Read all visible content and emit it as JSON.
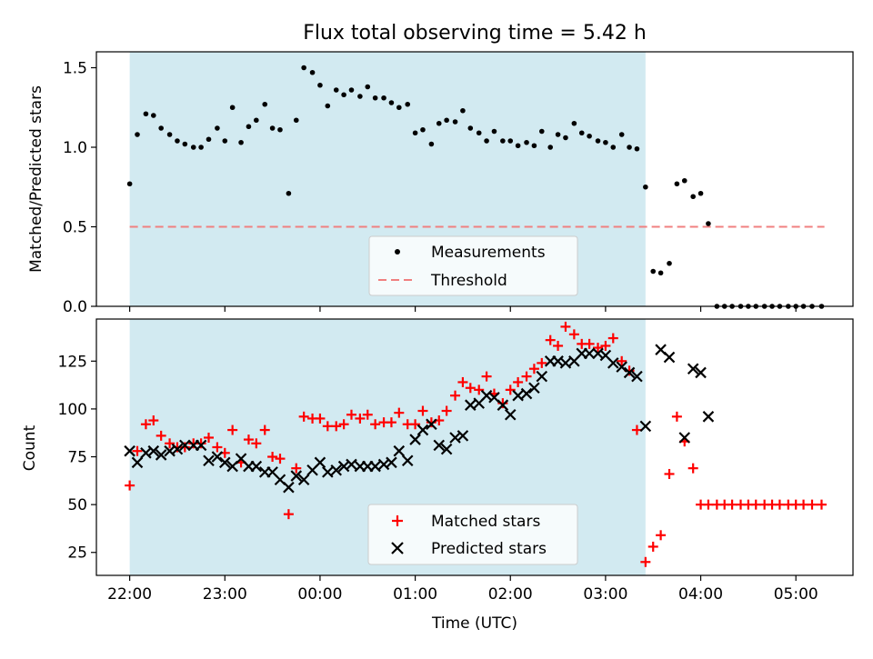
{
  "figure": {
    "title": "Flux total observing time = 5.42 h",
    "xlabel": "Time (UTC)",
    "x_ticks": [
      "22:00",
      "23:00",
      "00:00",
      "01:00",
      "02:00",
      "03:00",
      "04:00",
      "05:00"
    ]
  },
  "chart_data": [
    {
      "type": "scatter",
      "xlabel": "",
      "ylabel": "Matched/Predicted stars",
      "x_unit": "hours since 22:00 UTC",
      "xlim": [
        -0.35,
        7.6
      ],
      "ylim": [
        0,
        1.6
      ],
      "y_ticks": [
        "0.0",
        "0.5",
        "1.0",
        "1.5"
      ],
      "grid": false,
      "legend_position": "lower center",
      "shaded_interval": [
        0.0,
        5.42
      ],
      "shade_color": "#add8e6",
      "threshold": {
        "name": "Threshold",
        "value": 0.5,
        "x_range": [
          0.0,
          7.3
        ],
        "color": "#f08080"
      },
      "series": [
        {
          "name": "Measurements",
          "color": "#000000",
          "marker": "dot",
          "x": [
            0.0,
            0.08,
            0.17,
            0.25,
            0.33,
            0.42,
            0.5,
            0.58,
            0.67,
            0.75,
            0.83,
            0.92,
            1.0,
            1.08,
            1.17,
            1.25,
            1.33,
            1.42,
            1.5,
            1.58,
            1.67,
            1.75,
            1.83,
            1.92,
            2.0,
            2.08,
            2.17,
            2.25,
            2.33,
            2.42,
            2.5,
            2.58,
            2.67,
            2.75,
            2.83,
            2.92,
            3.0,
            3.08,
            3.17,
            3.25,
            3.33,
            3.42,
            3.5,
            3.58,
            3.67,
            3.75,
            3.83,
            3.92,
            4.0,
            4.08,
            4.17,
            4.25,
            4.33,
            4.42,
            4.5,
            4.58,
            4.67,
            4.75,
            4.83,
            4.92,
            5.0,
            5.08,
            5.17,
            5.25,
            5.33,
            5.42,
            5.5,
            5.58,
            5.67,
            5.75,
            5.83,
            5.92,
            6.0,
            6.08,
            6.17,
            6.25,
            6.33,
            6.42,
            6.5,
            6.58,
            6.67,
            6.75,
            6.83,
            6.92,
            7.0,
            7.08,
            7.17,
            7.27
          ],
          "y": [
            0.77,
            1.08,
            1.21,
            1.2,
            1.12,
            1.08,
            1.04,
            1.02,
            1.0,
            1.0,
            1.05,
            1.12,
            1.04,
            1.25,
            1.03,
            1.13,
            1.17,
            1.27,
            1.12,
            1.11,
            0.71,
            1.17,
            1.5,
            1.47,
            1.39,
            1.26,
            1.36,
            1.33,
            1.36,
            1.32,
            1.38,
            1.31,
            1.31,
            1.28,
            1.25,
            1.27,
            1.09,
            1.11,
            1.02,
            1.15,
            1.17,
            1.16,
            1.23,
            1.12,
            1.09,
            1.04,
            1.1,
            1.04,
            1.04,
            1.01,
            1.03,
            1.01,
            1.1,
            1.0,
            1.08,
            1.06,
            1.15,
            1.09,
            1.07,
            1.04,
            1.03,
            1.0,
            1.08,
            1.0,
            0.99,
            0.75,
            0.22,
            0.21,
            0.27,
            0.77,
            0.79,
            0.69,
            0.71,
            0.52,
            0.0,
            0.0,
            0.0,
            0.0,
            0.0,
            0.0,
            0.0,
            0.0,
            0.0,
            0.0,
            0.0,
            0.0,
            0.0,
            0.0
          ]
        }
      ]
    },
    {
      "type": "scatter",
      "xlabel": "Time (UTC)",
      "ylabel": "Count",
      "x_unit": "hours since 22:00 UTC",
      "xlim": [
        -0.35,
        7.6
      ],
      "ylim": [
        13,
        147
      ],
      "y_ticks": [
        "25",
        "50",
        "75",
        "100",
        "125"
      ],
      "grid": false,
      "legend_position": "lower center",
      "shaded_interval": [
        0.0,
        5.42
      ],
      "shade_color": "#add8e6",
      "series": [
        {
          "name": "Matched stars",
          "color": "#ff0000",
          "marker": "plus",
          "x": [
            0.0,
            0.08,
            0.17,
            0.25,
            0.33,
            0.42,
            0.5,
            0.58,
            0.67,
            0.75,
            0.83,
            0.92,
            1.0,
            1.08,
            1.17,
            1.25,
            1.33,
            1.42,
            1.5,
            1.58,
            1.67,
            1.75,
            1.83,
            1.92,
            2.0,
            2.08,
            2.17,
            2.25,
            2.33,
            2.42,
            2.5,
            2.58,
            2.67,
            2.75,
            2.83,
            2.92,
            3.0,
            3.08,
            3.17,
            3.25,
            3.33,
            3.42,
            3.5,
            3.58,
            3.67,
            3.75,
            3.83,
            3.92,
            4.0,
            4.08,
            4.17,
            4.25,
            4.33,
            4.42,
            4.5,
            4.58,
            4.67,
            4.75,
            4.83,
            4.92,
            5.0,
            5.08,
            5.17,
            5.25,
            5.33,
            5.42,
            5.5,
            5.58,
            5.67,
            5.75,
            5.83,
            5.92,
            6.0,
            6.08,
            6.17,
            6.25,
            6.33,
            6.42,
            6.5,
            6.58,
            6.67,
            6.75,
            6.83,
            6.92,
            7.0,
            7.08,
            7.17,
            7.27
          ],
          "y": [
            60,
            78,
            92,
            94,
            86,
            82,
            80,
            80,
            82,
            82,
            85,
            80,
            77,
            89,
            72,
            84,
            82,
            89,
            75,
            74,
            45,
            69,
            96,
            95,
            95,
            91,
            91,
            92,
            97,
            95,
            97,
            92,
            93,
            93,
            98,
            92,
            92,
            99,
            93,
            94,
            99,
            107,
            114,
            111,
            110,
            117,
            108,
            103,
            110,
            114,
            117,
            121,
            124,
            136,
            133,
            143,
            139,
            134,
            134,
            132,
            133,
            137,
            125,
            120,
            89,
            20,
            28,
            34,
            66,
            96,
            83,
            69,
            50,
            50,
            50,
            50,
            50,
            50,
            50,
            50,
            50,
            50,
            50,
            50,
            50,
            50,
            50,
            50
          ],
          "x_start_note": ""
        },
        {
          "name": "Predicted stars",
          "color": "#000000",
          "marker": "x",
          "x": [
            0.0,
            0.08,
            0.17,
            0.25,
            0.33,
            0.42,
            0.5,
            0.58,
            0.67,
            0.75,
            0.83,
            0.92,
            1.0,
            1.08,
            1.17,
            1.25,
            1.33,
            1.42,
            1.5,
            1.58,
            1.67,
            1.75,
            1.83,
            1.92,
            2.0,
            2.08,
            2.17,
            2.25,
            2.33,
            2.42,
            2.5,
            2.58,
            2.67,
            2.75,
            2.83,
            2.92,
            3.0,
            3.08,
            3.17,
            3.25,
            3.33,
            3.42,
            3.5,
            3.58,
            3.67,
            3.75,
            3.83,
            3.92,
            4.0,
            4.08,
            4.17,
            4.25,
            4.33,
            4.42,
            4.5,
            4.58,
            4.67,
            4.75,
            4.83,
            4.92,
            5.0,
            5.08,
            5.17,
            5.25,
            5.33,
            5.42,
            5.58,
            5.67,
            5.83,
            5.92,
            6.0,
            6.08
          ],
          "y": [
            78,
            72,
            77,
            78,
            76,
            78,
            79,
            81,
            81,
            81,
            73,
            75,
            72,
            70,
            74,
            70,
            70,
            67,
            67,
            63,
            59,
            65,
            63,
            68,
            72,
            67,
            68,
            70,
            71,
            70,
            70,
            70,
            71,
            72,
            78,
            73,
            84,
            89,
            92,
            81,
            79,
            85,
            86,
            102,
            103,
            107,
            106,
            102,
            97,
            107,
            108,
            111,
            117,
            125,
            125,
            124,
            125,
            129,
            129,
            129,
            128,
            124,
            122,
            119,
            117,
            91,
            131,
            127,
            85,
            121,
            119,
            96
          ]
        }
      ]
    }
  ]
}
